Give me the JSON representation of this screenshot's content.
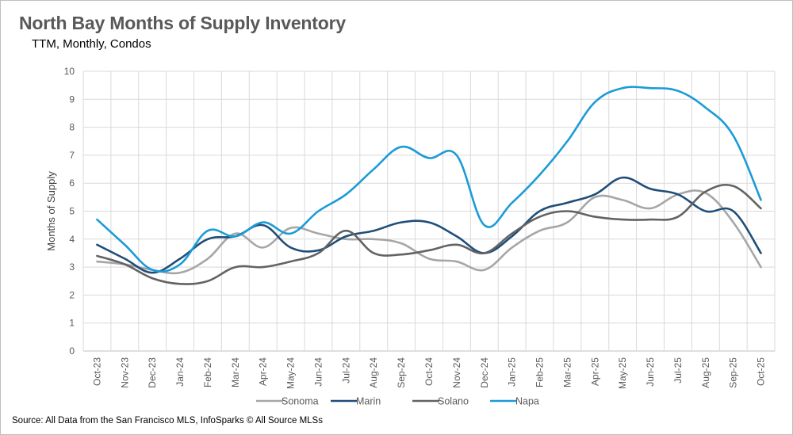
{
  "chart_data": {
    "type": "line",
    "title": "North Bay Months of Supply Inventory",
    "subtitle": "TTM, Monthly, Condos",
    "xlabel": "",
    "ylabel": "Months of Supply",
    "ylim": [
      0,
      10
    ],
    "yticks": [
      "0",
      "1",
      "2",
      "3",
      "4",
      "5",
      "6",
      "7",
      "8",
      "9",
      "10"
    ],
    "grid": true,
    "legend_position": "bottom",
    "categories": [
      "Oct-23",
      "Nov-23",
      "Dec-23",
      "Jan-24",
      "Feb-24",
      "Mar-24",
      "Apr-24",
      "May-24",
      "Jun-24",
      "Jul-24",
      "Aug-24",
      "Sep-24",
      "Oct-24",
      "Nov-24",
      "Dec-24",
      "Jan-25",
      "Feb-25",
      "Mar-25",
      "Apr-25",
      "May-25",
      "Jun-25",
      "Jul-25",
      "Aug-25",
      "Sep-25",
      "Oct-25"
    ],
    "series": [
      {
        "name": "Sonoma",
        "color": "#a6a6a6",
        "values": [
          3.2,
          3.1,
          2.9,
          2.8,
          3.3,
          4.2,
          3.7,
          4.4,
          4.2,
          4.0,
          4.0,
          3.85,
          3.3,
          3.2,
          2.9,
          3.7,
          4.3,
          4.6,
          5.5,
          5.4,
          5.1,
          5.6,
          5.65,
          4.6,
          3.0
        ]
      },
      {
        "name": "Marin",
        "color": "#1f4e79",
        "values": [
          3.8,
          3.3,
          2.8,
          3.3,
          4.0,
          4.1,
          4.5,
          3.7,
          3.6,
          4.1,
          4.3,
          4.6,
          4.6,
          4.1,
          3.5,
          4.1,
          5.0,
          5.3,
          5.6,
          6.2,
          5.8,
          5.6,
          5.0,
          5.0,
          3.5
        ]
      },
      {
        "name": "Solano",
        "color": "#636363",
        "values": [
          3.4,
          3.1,
          2.6,
          2.4,
          2.5,
          3.0,
          3.0,
          3.2,
          3.5,
          4.3,
          3.5,
          3.45,
          3.6,
          3.8,
          3.5,
          4.2,
          4.8,
          5.0,
          4.8,
          4.7,
          4.7,
          4.8,
          5.7,
          5.9,
          5.1
        ]
      },
      {
        "name": "Napa",
        "color": "#1b9bd7",
        "values": [
          4.7,
          3.8,
          2.9,
          3.1,
          4.3,
          4.1,
          4.6,
          4.2,
          5.0,
          5.6,
          6.5,
          7.3,
          6.9,
          7.0,
          4.5,
          5.3,
          6.3,
          7.5,
          8.9,
          9.4,
          9.4,
          9.3,
          8.7,
          7.7,
          5.4
        ]
      }
    ]
  },
  "source": "Source: All Data from the San Francisco MLS, InfoSparks © All Source MLSs"
}
